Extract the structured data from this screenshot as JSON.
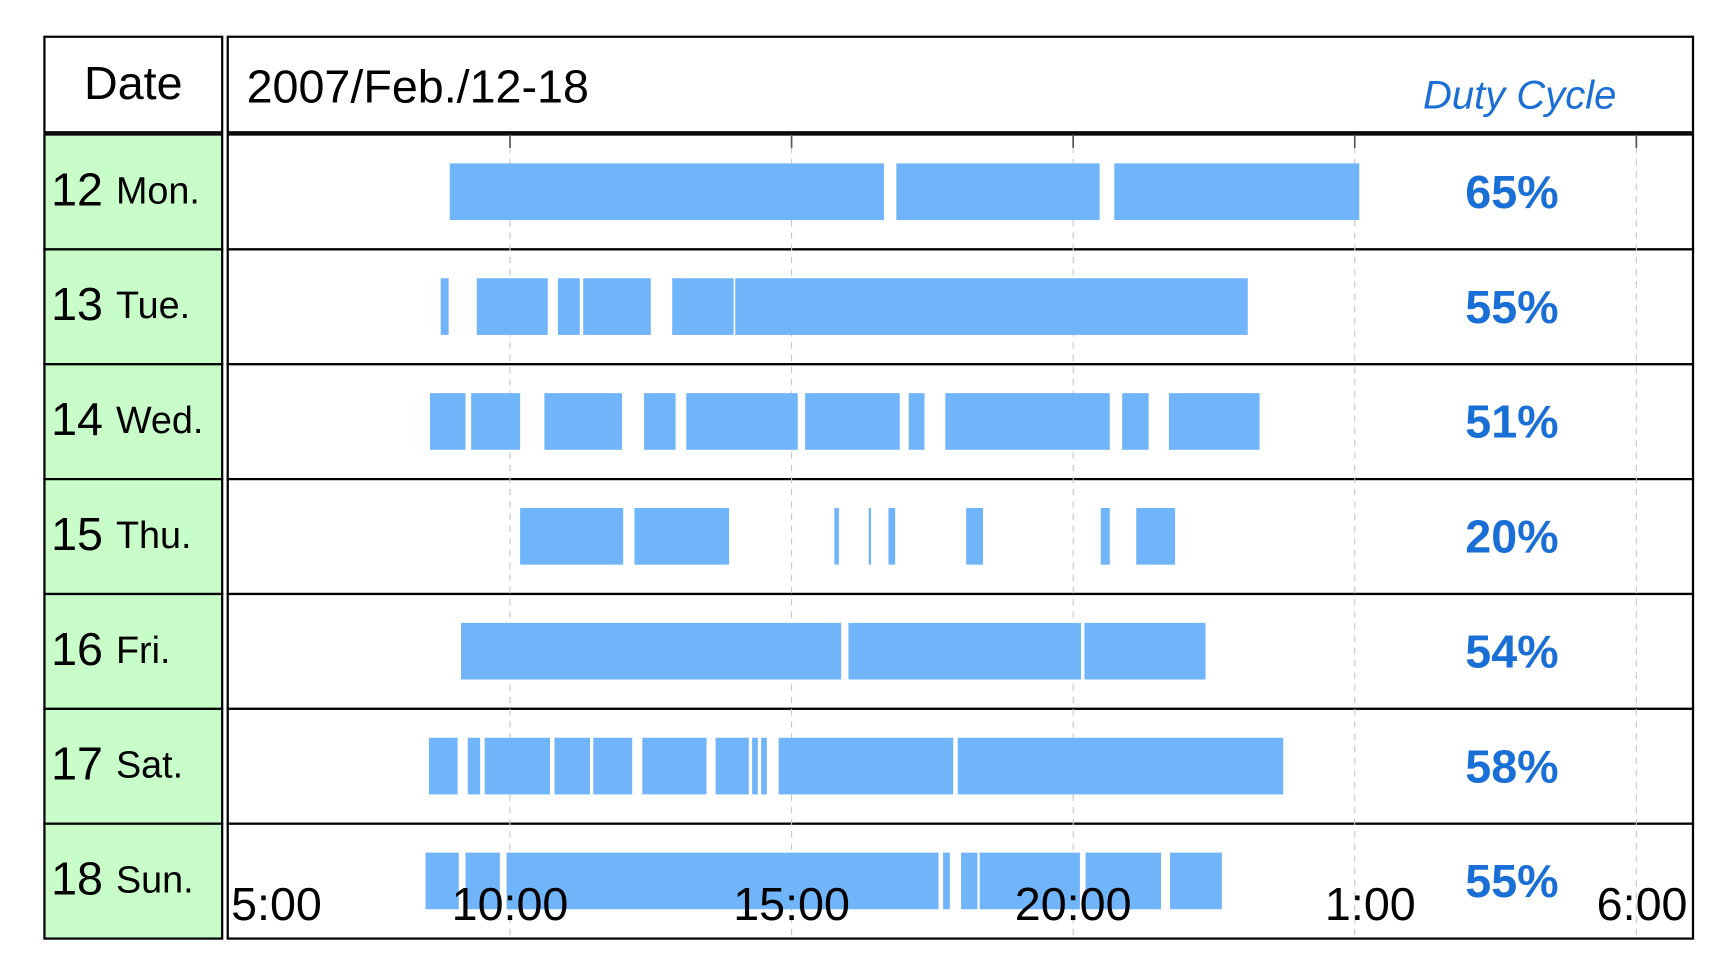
{
  "chart_data": {
    "type": "timeline",
    "date_header": "Date",
    "title": "2007/Feb./12-18",
    "xlim": [
      5,
      30
    ],
    "xticks": [
      {
        "value": 5,
        "label": "5:00"
      },
      {
        "value": 10,
        "label": "10:00"
      },
      {
        "value": 15,
        "label": "15:00"
      },
      {
        "value": 20,
        "label": "20:00"
      },
      {
        "value": 25,
        "label": "1:00"
      },
      {
        "value": 30,
        "label": "6:00"
      }
    ],
    "grid": true,
    "color": "#70b4fa",
    "rows": [
      {
        "date": "12",
        "day": "Mon.",
        "segments": [
          [
            8.93,
            16.64
          ],
          [
            16.86,
            20.47
          ],
          [
            20.73,
            25.08
          ]
        ]
      },
      {
        "date": "13",
        "day": "Tue.",
        "segments": [
          [
            8.77,
            8.91
          ],
          [
            9.41,
            10.67
          ],
          [
            10.85,
            11.24
          ],
          [
            11.3,
            12.5
          ],
          [
            12.88,
            13.97
          ],
          [
            14.0,
            23.1
          ]
        ]
      },
      {
        "date": "14",
        "day": "Wed.",
        "segments": [
          [
            8.58,
            9.21
          ],
          [
            9.31,
            10.18
          ],
          [
            10.61,
            11.99
          ],
          [
            12.38,
            12.94
          ],
          [
            13.13,
            15.11
          ],
          [
            15.24,
            16.92
          ],
          [
            17.08,
            17.36
          ],
          [
            17.73,
            20.65
          ],
          [
            20.87,
            21.34
          ],
          [
            21.7,
            23.31
          ]
        ]
      },
      {
        "date": "15",
        "day": "Thu.",
        "segments": [
          [
            10.18,
            12.01
          ],
          [
            12.21,
            13.89
          ],
          [
            15.76,
            15.84
          ],
          [
            16.37,
            16.41
          ],
          [
            16.72,
            16.84
          ],
          [
            18.1,
            18.4
          ],
          [
            20.49,
            20.65
          ],
          [
            21.12,
            21.81
          ]
        ]
      },
      {
        "date": "16",
        "day": "Fri.",
        "segments": [
          [
            9.13,
            15.88
          ],
          [
            16.01,
            20.14
          ],
          [
            20.2,
            22.35
          ]
        ]
      },
      {
        "date": "17",
        "day": "Sat.",
        "segments": [
          [
            8.56,
            9.07
          ],
          [
            9.25,
            9.47
          ],
          [
            9.55,
            10.71
          ],
          [
            10.79,
            11.42
          ],
          [
            11.48,
            12.17
          ],
          [
            12.35,
            13.49
          ],
          [
            13.65,
            14.24
          ],
          [
            14.3,
            14.4
          ],
          [
            14.46,
            14.56
          ],
          [
            14.77,
            17.87
          ],
          [
            17.95,
            23.73
          ]
        ]
      },
      {
        "date": "18",
        "day": "Sun.",
        "segments": [
          [
            8.5,
            9.09
          ],
          [
            9.21,
            9.82
          ],
          [
            9.94,
            17.61
          ],
          [
            17.69,
            17.81
          ],
          [
            18.01,
            18.3
          ],
          [
            18.34,
            20.12
          ],
          [
            20.22,
            21.56
          ],
          [
            21.72,
            22.64
          ]
        ]
      }
    ],
    "duty_cycle": {
      "title": "Duty Cycle",
      "color": "#1a6fd6",
      "values": [
        65,
        55,
        51,
        20,
        54,
        58,
        55
      ],
      "value_labels": [
        "65%",
        "55%",
        "51%",
        "20%",
        "54%",
        "58%",
        "55%"
      ]
    }
  }
}
